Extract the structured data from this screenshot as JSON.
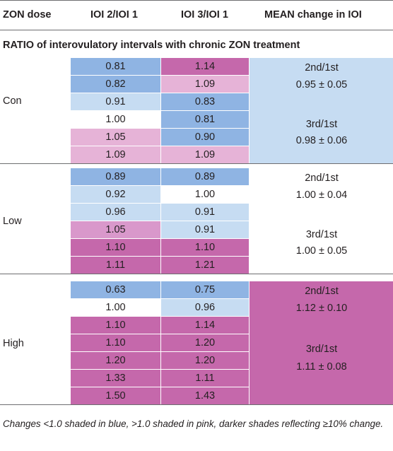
{
  "colors": {
    "dark_blue": "#8fb4e3",
    "light_blue": "#c6dcf2",
    "light_pink": "#e6b3d7",
    "mid_pink": "#d998cb",
    "dark_pink": "#c568ab",
    "white": "#ffffff"
  },
  "headers": [
    "ZON dose",
    "IOI 2/IOI 1",
    "IOI 3/IOI 1",
    "MEAN change in IOI"
  ],
  "caption": "RATIO of interovulatory intervals with chronic ZON treatment",
  "groups": [
    {
      "name": "Con",
      "rows": [
        {
          "c1": "0.81",
          "s1": "dark_blue",
          "c2": "1.14",
          "s2": "dark_pink"
        },
        {
          "c1": "0.82",
          "s1": "dark_blue",
          "c2": "1.09",
          "s2": "light_pink"
        },
        {
          "c1": "0.91",
          "s1": "light_blue",
          "c2": "0.83",
          "s2": "dark_blue"
        },
        {
          "c1": "1.00",
          "s1": "white",
          "c2": "0.81",
          "s2": "dark_blue"
        },
        {
          "c1": "1.05",
          "s1": "light_pink",
          "c2": "0.90",
          "s2": "dark_blue"
        },
        {
          "c1": "1.09",
          "s1": "light_pink",
          "c2": "1.09",
          "s2": "light_pink"
        }
      ],
      "mean": {
        "shade": "light_blue",
        "label1": "2nd/1st",
        "value1": "0.95 ± 0.05",
        "label2": "3rd/1st",
        "value2": "0.98 ± 0.06"
      }
    },
    {
      "name": "Low",
      "rows": [
        {
          "c1": "0.89",
          "s1": "dark_blue",
          "c2": "0.89",
          "s2": "dark_blue"
        },
        {
          "c1": "0.92",
          "s1": "light_blue",
          "c2": "1.00",
          "s2": "white"
        },
        {
          "c1": "0.96",
          "s1": "light_blue",
          "c2": "0.91",
          "s2": "light_blue"
        },
        {
          "c1": "1.05",
          "s1": "mid_pink",
          "c2": "0.91",
          "s2": "light_blue"
        },
        {
          "c1": "1.10",
          "s1": "dark_pink",
          "c2": "1.10",
          "s2": "dark_pink"
        },
        {
          "c1": "1.11",
          "s1": "dark_pink",
          "c2": "1.21",
          "s2": "dark_pink"
        }
      ],
      "mean": {
        "shade": "white",
        "label1": "2nd/1st",
        "value1": "1.00 ± 0.04",
        "label2": "3rd/1st",
        "value2": "1.00 ± 0.05"
      }
    },
    {
      "name": "High",
      "rows": [
        {
          "c1": "0.63",
          "s1": "dark_blue",
          "c2": "0.75",
          "s2": "dark_blue"
        },
        {
          "c1": "1.00",
          "s1": "white",
          "c2": "0.96",
          "s2": "light_blue"
        },
        {
          "c1": "1.10",
          "s1": "dark_pink",
          "c2": "1.14",
          "s2": "dark_pink"
        },
        {
          "c1": "1.10",
          "s1": "dark_pink",
          "c2": "1.20",
          "s2": "dark_pink"
        },
        {
          "c1": "1.20",
          "s1": "dark_pink",
          "c2": "1.20",
          "s2": "dark_pink"
        },
        {
          "c1": "1.33",
          "s1": "dark_pink",
          "c2": "1.11",
          "s2": "dark_pink"
        },
        {
          "c1": "1.50",
          "s1": "dark_pink",
          "c2": "1.43",
          "s2": "dark_pink"
        }
      ],
      "mean": {
        "shade": "dark_pink",
        "label1": "2nd/1st",
        "value1": "1.12 ± 0.10",
        "label2": "3rd/1st",
        "value2": "1.11 ± 0.08"
      }
    }
  ],
  "footnote": "Changes <1.0 shaded in blue, >1.0 shaded in pink, darker shades reflecting ≥10% change."
}
